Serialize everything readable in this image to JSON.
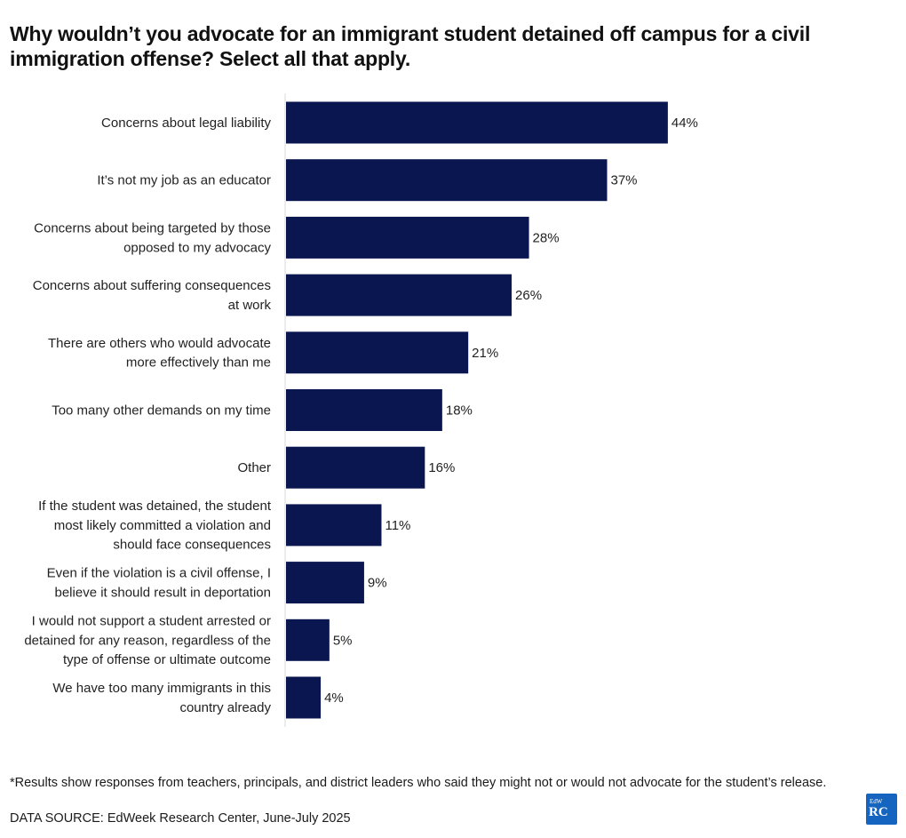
{
  "title": "Why wouldn’t you advocate for an immigrant student detained off campus for a civil immigration offense? Select all that apply.",
  "footnote": "*Results show responses from teachers, principals, and district leaders who said they might not or would not advocate for the student’s release.",
  "source": "DATA SOURCE: EdWeek Research Center, June-July 2025",
  "logo": {
    "top_text": "EdW",
    "main_text": "RC",
    "color": "#1565c0"
  },
  "colors": {
    "bar": "#0a1650",
    "axis": "#d9d9d9"
  },
  "chart_data": {
    "type": "bar",
    "orientation": "horizontal",
    "categories": [
      [
        "Concerns about legal liability"
      ],
      [
        "It’s not my job as an educator"
      ],
      [
        "Concerns about being targeted by those",
        "opposed to my advocacy"
      ],
      [
        "Concerns about suffering consequences",
        "at work"
      ],
      [
        "There are others who would advocate",
        "more effectively than me"
      ],
      [
        "Too many other demands on my time"
      ],
      [
        "Other"
      ],
      [
        "If the student was detained, the student",
        "most likely committed a violation and",
        "should face consequences"
      ],
      [
        "Even if the violation is a civil offense, I",
        "believe it should result in deportation"
      ],
      [
        "I would not support a student arrested or",
        "detained for any reason, regardless of the",
        "type of offense or ultimate outcome"
      ],
      [
        "We have too many immigrants in this",
        "country already"
      ]
    ],
    "values": [
      44,
      37,
      28,
      26,
      21,
      18,
      16,
      11,
      9,
      5,
      4
    ],
    "value_suffix": "%",
    "xlim": [
      0,
      100
    ],
    "grid": false,
    "legend": "none"
  }
}
